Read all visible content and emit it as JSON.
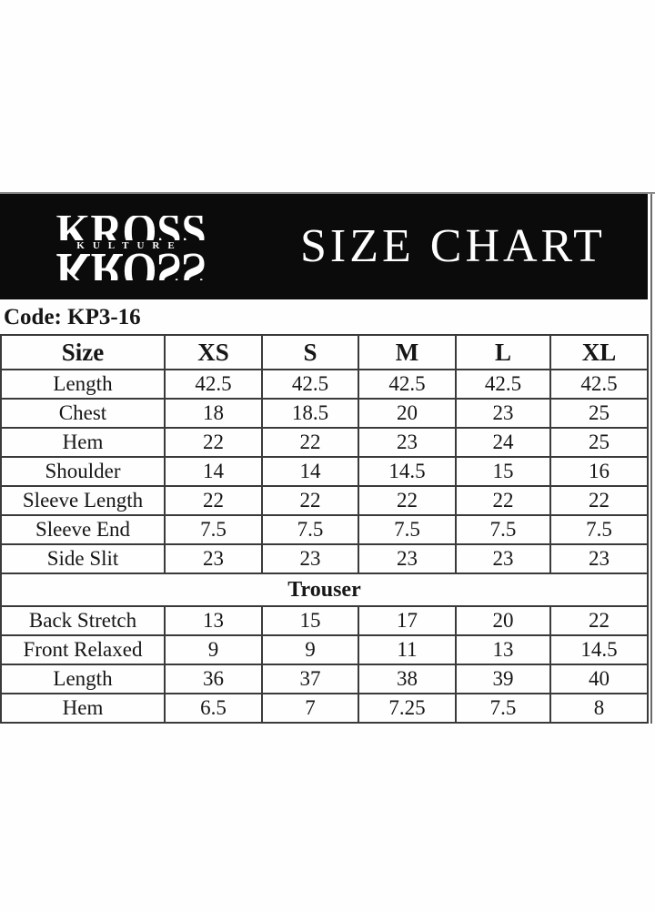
{
  "brand": {
    "word": "KROSS",
    "subtitle": "KULTURE"
  },
  "header": {
    "title": "SIZE CHART"
  },
  "code_label": "Code: KP3-16",
  "chart_data": {
    "type": "table",
    "title": "SIZE CHART",
    "product_code": "KP3-16",
    "columns": [
      "Size",
      "XS",
      "S",
      "M",
      "L",
      "XL"
    ],
    "sections": [
      {
        "name": "",
        "rows": [
          {
            "label": "Length",
            "values": [
              "42.5",
              "42.5",
              "42.5",
              "42.5",
              "42.5"
            ]
          },
          {
            "label": "Chest",
            "values": [
              "18",
              "18.5",
              "20",
              "23",
              "25"
            ]
          },
          {
            "label": "Hem",
            "values": [
              "22",
              "22",
              "23",
              "24",
              "25"
            ]
          },
          {
            "label": "Shoulder",
            "values": [
              "14",
              "14",
              "14.5",
              "15",
              "16"
            ]
          },
          {
            "label": "Sleeve Length",
            "values": [
              "22",
              "22",
              "22",
              "22",
              "22"
            ]
          },
          {
            "label": "Sleeve End",
            "values": [
              "7.5",
              "7.5",
              "7.5",
              "7.5",
              "7.5"
            ]
          },
          {
            "label": "Side Slit",
            "values": [
              "23",
              "23",
              "23",
              "23",
              "23"
            ]
          }
        ]
      },
      {
        "name": "Trouser",
        "rows": [
          {
            "label": "Back Stretch",
            "values": [
              "13",
              "15",
              "17",
              "20",
              "22"
            ]
          },
          {
            "label": "Front Relaxed",
            "values": [
              "9",
              "9",
              "11",
              "13",
              "14.5"
            ]
          },
          {
            "label": "Length",
            "values": [
              "36",
              "37",
              "38",
              "39",
              "40"
            ]
          },
          {
            "label": "Hem",
            "values": [
              "6.5",
              "7",
              "7.25",
              "7.5",
              "8"
            ]
          }
        ]
      }
    ]
  },
  "colors": {
    "banner_bg": "#0b0b0b",
    "banner_text": "#ffffff",
    "table_border": "#3a3a3a",
    "text": "#161616",
    "page_bg": "#fefefe"
  }
}
